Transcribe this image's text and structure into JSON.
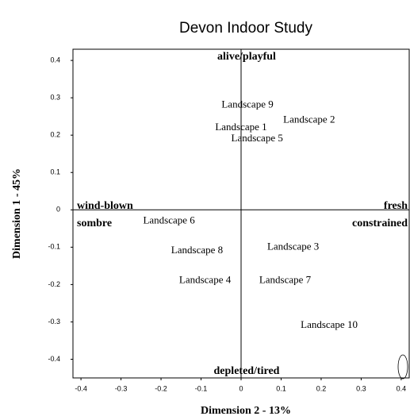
{
  "chart_data": {
    "type": "scatter",
    "title": "Devon Indoor Study",
    "x_label": "Dimension 2  -  13%",
    "y_label": "Dimension 1  -  45%",
    "point_labels": [
      "Landscape 9",
      "Landscape 2",
      "Landscape 1",
      "Landscape 5",
      "Landscape 6",
      "Landscape 8",
      "Landscape 3",
      "Landscape 4",
      "Landscape 7",
      "Landscape 10"
    ],
    "x": [
      0.016,
      0.17,
      0.0,
      0.04,
      -0.18,
      -0.11,
      0.13,
      -0.09,
      0.11,
      0.22
    ],
    "values": [
      0.28,
      0.24,
      0.22,
      0.19,
      -0.03,
      -0.11,
      -0.1,
      -0.19,
      -0.19,
      -0.31
    ],
    "annotations": {
      "top": "alive/playful",
      "bottom": "depleted/tired",
      "left_upper": "wind-blown",
      "left_lower": "sombre",
      "right_upper": "fresh",
      "right_lower": "constrained"
    },
    "xlim": [
      -0.42,
      0.42
    ],
    "ylim": [
      -0.45,
      0.43
    ],
    "xticks": [
      -0.4,
      -0.3,
      -0.2,
      -0.1,
      0,
      0.1,
      0.2,
      0.3,
      0.4
    ],
    "yticks": [
      -0.4,
      -0.3,
      -0.2,
      -0.1,
      0,
      0.1,
      0.2,
      0.3,
      0.4
    ]
  }
}
